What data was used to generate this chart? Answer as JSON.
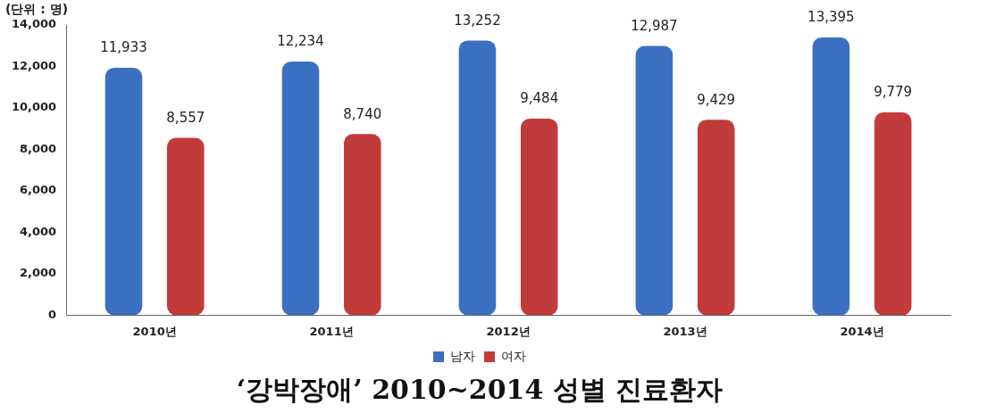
{
  "chart_data": {
    "type": "bar",
    "title": "‘강박장애’ 2010~2014 성별 진료환자",
    "ylabel": "(단위 : 명)",
    "categories": [
      "2010년",
      "2011년",
      "2012년",
      "2013년",
      "2014년"
    ],
    "series": [
      {
        "name": "남자",
        "color": "#3b6fc2",
        "values": [
          11933,
          12234,
          13252,
          12987,
          13395
        ],
        "value_labels": [
          "11,933",
          "12,234",
          "13,252",
          "12,987",
          "13,395"
        ]
      },
      {
        "name": "여자",
        "color": "#c23b3b",
        "values": [
          8557,
          8740,
          9484,
          9429,
          9779
        ],
        "value_labels": [
          "8,557",
          "8,740",
          "9,484",
          "9,429",
          "9,779"
        ]
      }
    ],
    "ylim": [
      0,
      14000
    ],
    "yticks": [
      {
        "value": 0,
        "label": "0"
      },
      {
        "value": 2000,
        "label": "2,000"
      },
      {
        "value": 4000,
        "label": "4,000"
      },
      {
        "value": 6000,
        "label": "6,000"
      },
      {
        "value": 8000,
        "label": "8,000"
      },
      {
        "value": 10000,
        "label": "10,000"
      },
      {
        "value": 12000,
        "label": "12,000"
      },
      {
        "value": 14000,
        "label": "14,000"
      }
    ],
    "grid": false,
    "legend": "bottom"
  }
}
